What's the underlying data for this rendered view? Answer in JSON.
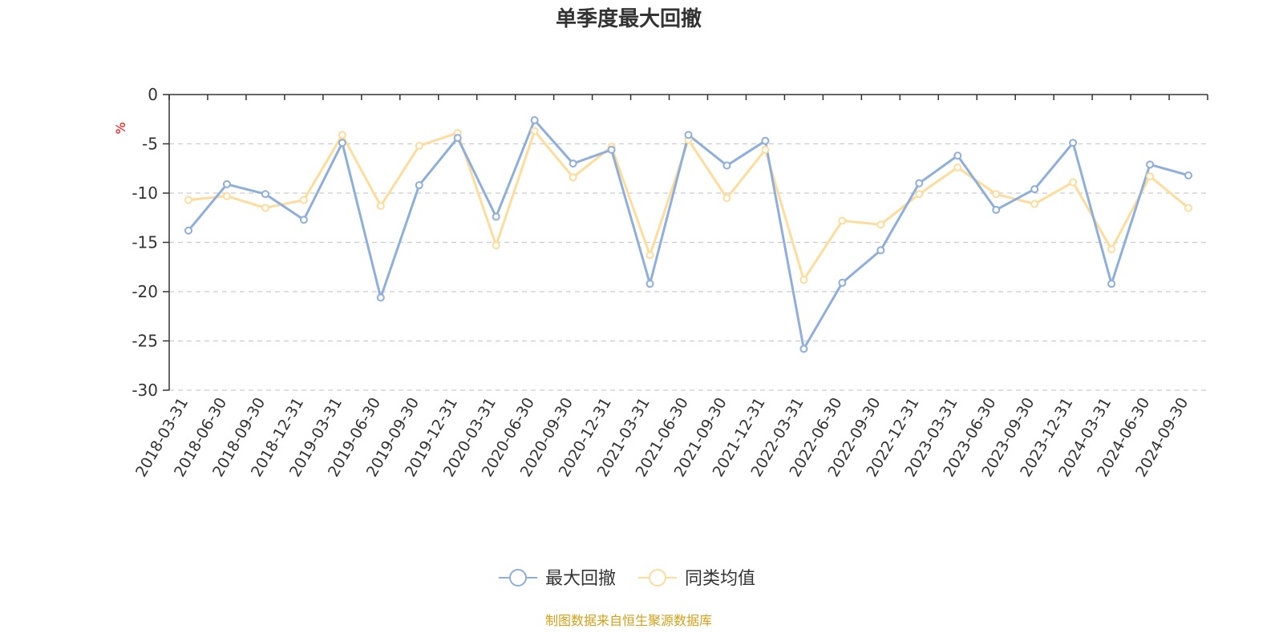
{
  "chart_data": {
    "type": "line",
    "title": "单季度最大回撤",
    "ylabel": "%",
    "ylim": [
      -30,
      0
    ],
    "yticks": [
      0,
      -5,
      -10,
      -15,
      -20,
      -25,
      -30
    ],
    "grid": true,
    "legend_position": "bottom-center",
    "categories": [
      "2018-03-31",
      "2018-06-30",
      "2018-09-30",
      "2018-12-31",
      "2019-03-31",
      "2019-06-30",
      "2019-09-30",
      "2019-12-31",
      "2020-03-31",
      "2020-06-30",
      "2020-09-30",
      "2020-12-31",
      "2021-03-31",
      "2021-06-30",
      "2021-09-30",
      "2021-12-31",
      "2022-03-31",
      "2022-06-30",
      "2022-09-30",
      "2022-12-31",
      "2023-03-31",
      "2023-06-30",
      "2023-09-30",
      "2023-12-31",
      "2024-03-31",
      "2024-06-30",
      "2024-09-30"
    ],
    "series": [
      {
        "name": "最大回撤",
        "color": "#8eaedb",
        "values": [
          -13.8,
          -9.1,
          -10.1,
          -12.7,
          -4.9,
          -20.6,
          -9.2,
          -4.4,
          -12.4,
          -2.6,
          -7.0,
          -5.6,
          -19.2,
          -4.1,
          -7.2,
          -4.7,
          -25.8,
          -19.1,
          -15.8,
          -9.0,
          -6.2,
          -11.7,
          -9.6,
          -4.9,
          -19.2,
          -7.1,
          -8.2
        ]
      },
      {
        "name": "同类均值",
        "color": "#fddc9c",
        "values": [
          -10.7,
          -10.3,
          -11.5,
          -10.7,
          -4.1,
          -11.3,
          -5.2,
          -3.9,
          -15.3,
          -3.7,
          -8.4,
          -5.3,
          -16.3,
          -4.6,
          -10.5,
          -5.6,
          -18.8,
          -12.8,
          -13.2,
          -10.1,
          -7.4,
          -10.1,
          -11.1,
          -8.9,
          -15.7,
          -8.3,
          -11.5
        ]
      }
    ]
  },
  "source_note": "制图数据来自恒生聚源数据库",
  "colors": {
    "axis": "#333333",
    "grid": "#cccccc",
    "unit": "#ff0000",
    "source": "#d4a017"
  }
}
